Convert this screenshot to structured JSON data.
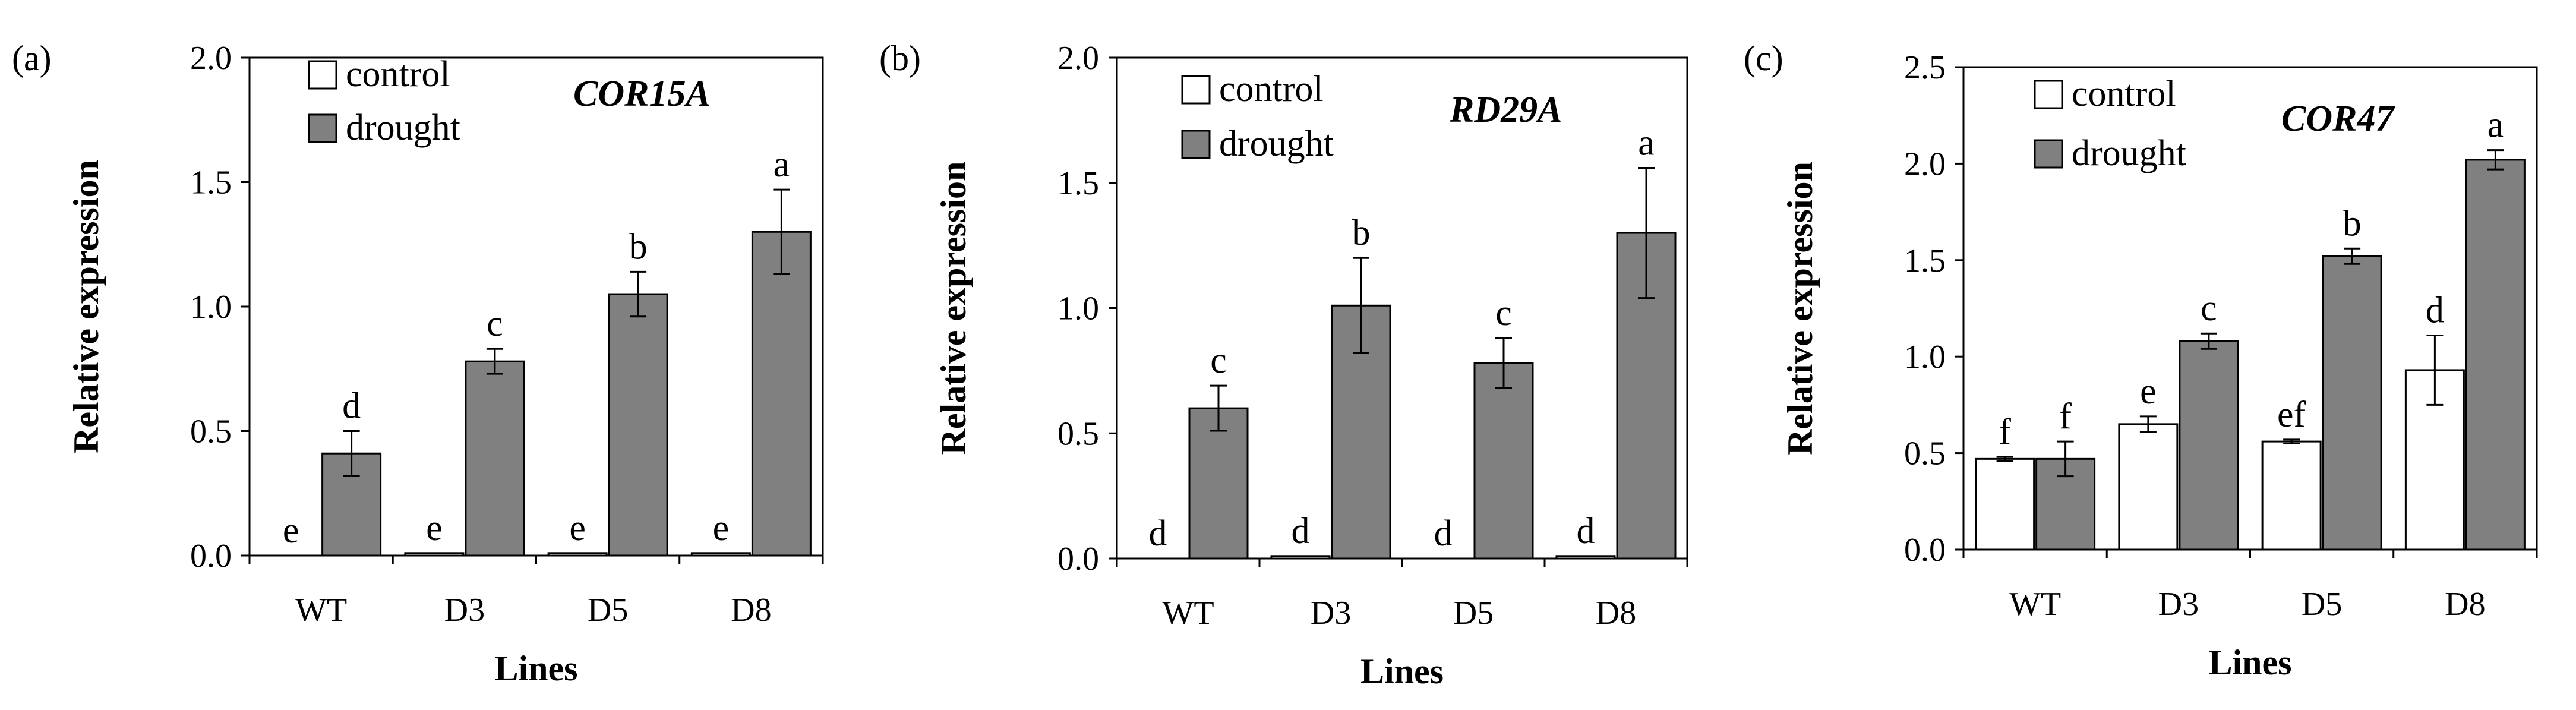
{
  "colors": {
    "control_fill": "#ffffff",
    "drought_fill": "#808080",
    "stroke": "#000000"
  },
  "chart_data": [
    {
      "type": "bar",
      "panel_label": "(a)",
      "gene": "COR15A",
      "xlabel": "Lines",
      "ylabel": "Relative expression",
      "ylim": [
        0,
        2.0
      ],
      "yticks": [
        "0.0",
        "0.5",
        "1.0",
        "1.5",
        "2.0"
      ],
      "categories": [
        "WT",
        "D3",
        "D5",
        "D8"
      ],
      "legend": [
        "control",
        "drought"
      ],
      "series": [
        {
          "name": "control",
          "values": [
            0.0,
            0.01,
            0.01,
            0.01
          ],
          "errors": [
            0,
            0,
            0,
            0
          ],
          "labels": [
            "e",
            "e",
            "e",
            "e"
          ]
        },
        {
          "name": "drought",
          "values": [
            0.41,
            0.78,
            1.05,
            1.3
          ],
          "errors": [
            0.09,
            0.05,
            0.09,
            0.17
          ],
          "labels": [
            "d",
            "c",
            "b",
            "a"
          ]
        }
      ]
    },
    {
      "type": "bar",
      "panel_label": "(b)",
      "gene": "RD29A",
      "xlabel": "Lines",
      "ylabel": "Relative expression",
      "ylim": [
        0,
        2.0
      ],
      "yticks": [
        "0.0",
        "0.5",
        "1.0",
        "1.5",
        "2.0"
      ],
      "categories": [
        "WT",
        "D3",
        "D5",
        "D8"
      ],
      "legend": [
        "control",
        "drought"
      ],
      "series": [
        {
          "name": "control",
          "values": [
            0.0,
            0.01,
            0.0,
            0.01
          ],
          "errors": [
            0,
            0,
            0,
            0
          ],
          "labels": [
            "d",
            "d",
            "d",
            "d"
          ]
        },
        {
          "name": "drought",
          "values": [
            0.6,
            1.01,
            0.78,
            1.3
          ],
          "errors": [
            0.09,
            0.19,
            0.1,
            0.26
          ],
          "labels": [
            "c",
            "b",
            "c",
            "a"
          ]
        }
      ]
    },
    {
      "type": "bar",
      "panel_label": "(c)",
      "gene": "COR47",
      "xlabel": "Lines",
      "ylabel": "Relative expression",
      "ylim": [
        0,
        2.5
      ],
      "yticks": [
        "0.0",
        "0.5",
        "1.0",
        "1.5",
        "2.0",
        "2.5"
      ],
      "categories": [
        "WT",
        "D3",
        "D5",
        "D8"
      ],
      "legend": [
        "control",
        "drought"
      ],
      "series": [
        {
          "name": "control",
          "values": [
            0.47,
            0.65,
            0.56,
            0.93
          ],
          "errors": [
            0.01,
            0.04,
            0.01,
            0.18
          ],
          "labels": [
            "f",
            "e",
            "ef",
            "d"
          ]
        },
        {
          "name": "drought",
          "values": [
            0.47,
            1.08,
            1.52,
            2.02
          ],
          "errors": [
            0.09,
            0.04,
            0.04,
            0.05
          ],
          "labels": [
            "f",
            "c",
            "b",
            "a"
          ]
        }
      ]
    }
  ]
}
